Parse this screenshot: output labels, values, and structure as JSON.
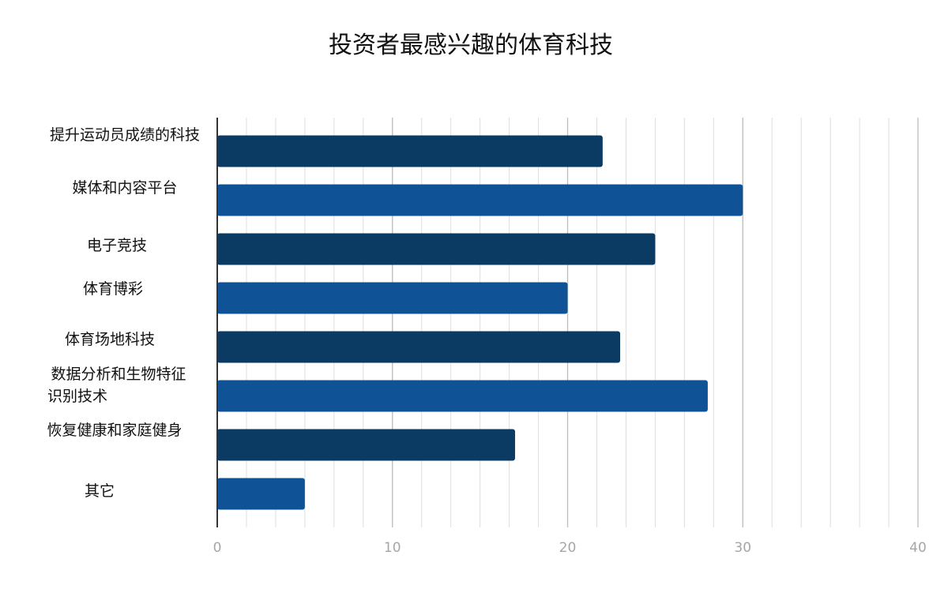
{
  "chart_data": {
    "type": "bar",
    "orientation": "horizontal",
    "title": "投资者最感兴趣的体育科技",
    "xlabel": "",
    "ylabel": "",
    "categories": [
      "提升运动员成绩的科技",
      "媒体和内容平台",
      "电子竞技",
      "体育博彩",
      "体育场地科技",
      "数据分析和生物特征识别技术",
      "恢复健康和家庭健身",
      "其它"
    ],
    "category_label_lines": [
      [
        "提升运动员成绩的科技"
      ],
      [
        "媒体和内容平台"
      ],
      [
        "电子竞技"
      ],
      [
        "体育博彩"
      ],
      [
        "体育场地科技"
      ],
      [
        "数据分析和生物特征",
        "识别技术"
      ],
      [
        "恢复健康和家庭健身"
      ],
      [
        "其它"
      ]
    ],
    "values": [
      22,
      30,
      25,
      20,
      23,
      28,
      17,
      5
    ],
    "xlim": [
      0,
      40
    ],
    "x_ticks": [
      0,
      10,
      20,
      30,
      40
    ],
    "minor_tick_step": 1.6667,
    "grid": true,
    "legend": "none",
    "colors": {
      "bar_dark": "#0b3a63",
      "bar_light": "#0f5396",
      "major_grid": "#bdbdbd",
      "minor_grid": "#dedede",
      "axis": "#333333",
      "tick_text": "#a6a6a6",
      "label_text": "#111111",
      "title_text": "#111111"
    }
  }
}
